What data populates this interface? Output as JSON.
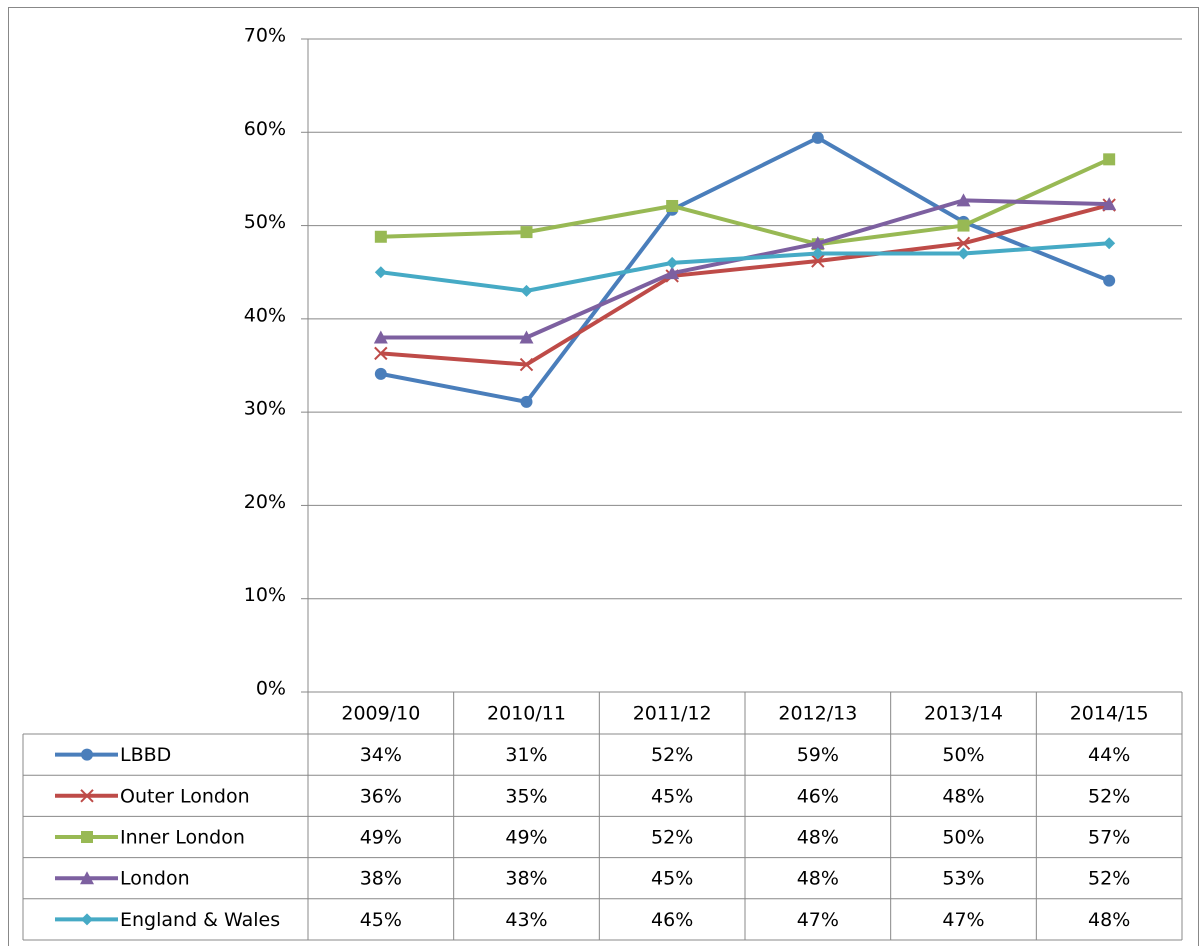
{
  "chart_data": {
    "type": "line",
    "categories": [
      "2009/10",
      "2010/11",
      "2011/12",
      "2012/13",
      "2013/14",
      "2014/15"
    ],
    "ylim": [
      0,
      70
    ],
    "yticks": [
      {
        "value": 0,
        "label": "0%"
      },
      {
        "value": 10,
        "label": "10%"
      },
      {
        "value": 20,
        "label": "20%"
      },
      {
        "value": 30,
        "label": "30%"
      },
      {
        "value": 40,
        "label": "40%"
      },
      {
        "value": 50,
        "label": "50%"
      },
      {
        "value": 60,
        "label": "60%"
      },
      {
        "value": 70,
        "label": "70%"
      }
    ],
    "grid": true,
    "series": [
      {
        "name": "LBBD",
        "color": "#4a7ebb",
        "marker": "circle",
        "values": [
          34.1,
          31.1,
          51.7,
          59.4,
          50.4,
          44.1
        ],
        "value_labels": [
          "34%",
          "31%",
          "52%",
          "59%",
          "50%",
          "44%"
        ]
      },
      {
        "name": "Outer London",
        "color": "#be4b48",
        "marker": "x",
        "values": [
          36.3,
          35.1,
          44.6,
          46.2,
          48.1,
          52.2
        ],
        "value_labels": [
          "36%",
          "35%",
          "45%",
          "46%",
          "48%",
          "52%"
        ]
      },
      {
        "name": "Inner London",
        "color": "#98b954",
        "marker": "square",
        "values": [
          48.8,
          49.3,
          52.1,
          48.0,
          50.0,
          57.1
        ],
        "value_labels": [
          "49%",
          "49%",
          "52%",
          "48%",
          "50%",
          "57%"
        ]
      },
      {
        "name": "London",
        "color": "#7d60a0",
        "marker": "triangle",
        "values": [
          38.0,
          38.0,
          44.9,
          48.1,
          52.7,
          52.3
        ],
        "value_labels": [
          "38%",
          "38%",
          "45%",
          "48%",
          "53%",
          "52%"
        ]
      },
      {
        "name": "England & Wales",
        "color": "#46aac5",
        "marker": "diamond",
        "values": [
          45.0,
          43.0,
          46.0,
          47.0,
          47.0,
          48.1
        ],
        "value_labels": [
          "45%",
          "43%",
          "46%",
          "47%",
          "47%",
          "48%"
        ]
      }
    ]
  }
}
